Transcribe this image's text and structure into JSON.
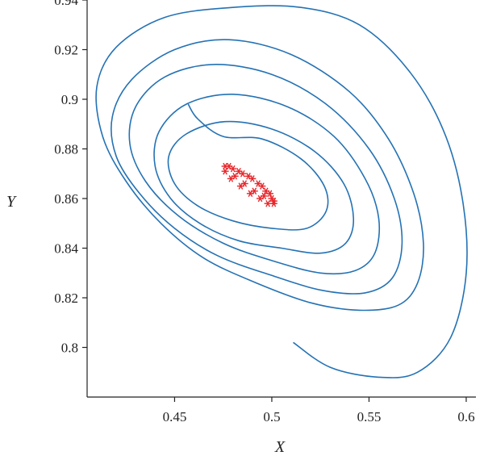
{
  "chart_data": {
    "type": "line",
    "title": "",
    "xlabel": "X",
    "ylabel": "Y",
    "xlim": [
      0.405,
      0.605
    ],
    "ylim": [
      0.78,
      0.94
    ],
    "xticks": [
      "0.45",
      "0.5",
      "0.55",
      "0.6"
    ],
    "yticks": [
      "0.8",
      "0.82",
      "0.84",
      "0.86",
      "0.88",
      "0.9",
      "0.92",
      "0.94"
    ],
    "grid": false,
    "legend": "none",
    "series": [
      {
        "name": "",
        "kind": "line",
        "color": "#2472b4",
        "points": [
          [
            0.511,
            0.802
          ],
          [
            0.53,
            0.792
          ],
          [
            0.555,
            0.788
          ],
          [
            0.575,
            0.79
          ],
          [
            0.592,
            0.804
          ],
          [
            0.6,
            0.83
          ],
          [
            0.598,
            0.86
          ],
          [
            0.588,
            0.888
          ],
          [
            0.57,
            0.912
          ],
          [
            0.545,
            0.93
          ],
          [
            0.515,
            0.937
          ],
          [
            0.48,
            0.937
          ],
          [
            0.445,
            0.933
          ],
          [
            0.42,
            0.921
          ],
          [
            0.41,
            0.905
          ],
          [
            0.413,
            0.885
          ],
          [
            0.425,
            0.867
          ],
          [
            0.443,
            0.85
          ],
          [
            0.465,
            0.836
          ],
          [
            0.492,
            0.826
          ],
          [
            0.52,
            0.818
          ],
          [
            0.545,
            0.815
          ],
          [
            0.565,
            0.817
          ],
          [
            0.575,
            0.826
          ],
          [
            0.578,
            0.842
          ],
          [
            0.573,
            0.862
          ],
          [
            0.56,
            0.884
          ],
          [
            0.54,
            0.903
          ],
          [
            0.51,
            0.918
          ],
          [
            0.478,
            0.924
          ],
          [
            0.45,
            0.92
          ],
          [
            0.428,
            0.908
          ],
          [
            0.418,
            0.893
          ],
          [
            0.42,
            0.877
          ],
          [
            0.432,
            0.862
          ],
          [
            0.45,
            0.848
          ],
          [
            0.472,
            0.837
          ],
          [
            0.5,
            0.829
          ],
          [
            0.526,
            0.823
          ],
          [
            0.548,
            0.822
          ],
          [
            0.562,
            0.828
          ],
          [
            0.567,
            0.842
          ],
          [
            0.563,
            0.86
          ],
          [
            0.55,
            0.88
          ],
          [
            0.528,
            0.898
          ],
          [
            0.5,
            0.91
          ],
          [
            0.47,
            0.914
          ],
          [
            0.445,
            0.909
          ],
          [
            0.43,
            0.897
          ],
          [
            0.427,
            0.882
          ],
          [
            0.435,
            0.867
          ],
          [
            0.452,
            0.853
          ],
          [
            0.475,
            0.842
          ],
          [
            0.5,
            0.835
          ],
          [
            0.525,
            0.83
          ],
          [
            0.543,
            0.831
          ],
          [
            0.553,
            0.838
          ],
          [
            0.555,
            0.852
          ],
          [
            0.548,
            0.868
          ],
          [
            0.532,
            0.885
          ],
          [
            0.508,
            0.897
          ],
          [
            0.48,
            0.902
          ],
          [
            0.456,
            0.898
          ],
          [
            0.442,
            0.887
          ],
          [
            0.44,
            0.873
          ],
          [
            0.448,
            0.86
          ],
          [
            0.463,
            0.85
          ],
          [
            0.483,
            0.843
          ],
          [
            0.505,
            0.84
          ],
          [
            0.525,
            0.838
          ],
          [
            0.538,
            0.842
          ],
          [
            0.542,
            0.852
          ],
          [
            0.537,
            0.866
          ],
          [
            0.522,
            0.879
          ],
          [
            0.5,
            0.888
          ],
          [
            0.476,
            0.891
          ],
          [
            0.456,
            0.886
          ],
          [
            0.447,
            0.877
          ],
          [
            0.45,
            0.866
          ],
          [
            0.462,
            0.857
          ],
          [
            0.48,
            0.851
          ],
          [
            0.5,
            0.848
          ],
          [
            0.518,
            0.848
          ],
          [
            0.528,
            0.855
          ],
          [
            0.527,
            0.865
          ],
          [
            0.515,
            0.876
          ],
          [
            0.495,
            0.884
          ],
          [
            0.475,
            0.885
          ],
          [
            0.462,
            0.892
          ],
          [
            0.457,
            0.898
          ]
        ]
      },
      {
        "name": "",
        "kind": "markers",
        "marker": "asterisk",
        "color": "#e8262b",
        "points": [
          [
            0.476,
            0.873
          ],
          [
            0.48,
            0.872
          ],
          [
            0.485,
            0.87
          ],
          [
            0.49,
            0.868
          ],
          [
            0.495,
            0.865
          ],
          [
            0.499,
            0.862
          ],
          [
            0.501,
            0.859
          ],
          [
            0.501,
            0.858
          ],
          [
            0.498,
            0.858
          ],
          [
            0.494,
            0.86
          ],
          [
            0.489,
            0.862
          ],
          [
            0.484,
            0.865
          ],
          [
            0.479,
            0.868
          ],
          [
            0.476,
            0.871
          ],
          [
            0.478,
            0.873
          ],
          [
            0.483,
            0.871
          ],
          [
            0.488,
            0.869
          ],
          [
            0.493,
            0.866
          ],
          [
            0.497,
            0.863
          ],
          [
            0.5,
            0.86
          ],
          [
            0.496,
            0.861
          ],
          [
            0.491,
            0.863
          ],
          [
            0.486,
            0.866
          ],
          [
            0.481,
            0.869
          ]
        ]
      }
    ]
  }
}
